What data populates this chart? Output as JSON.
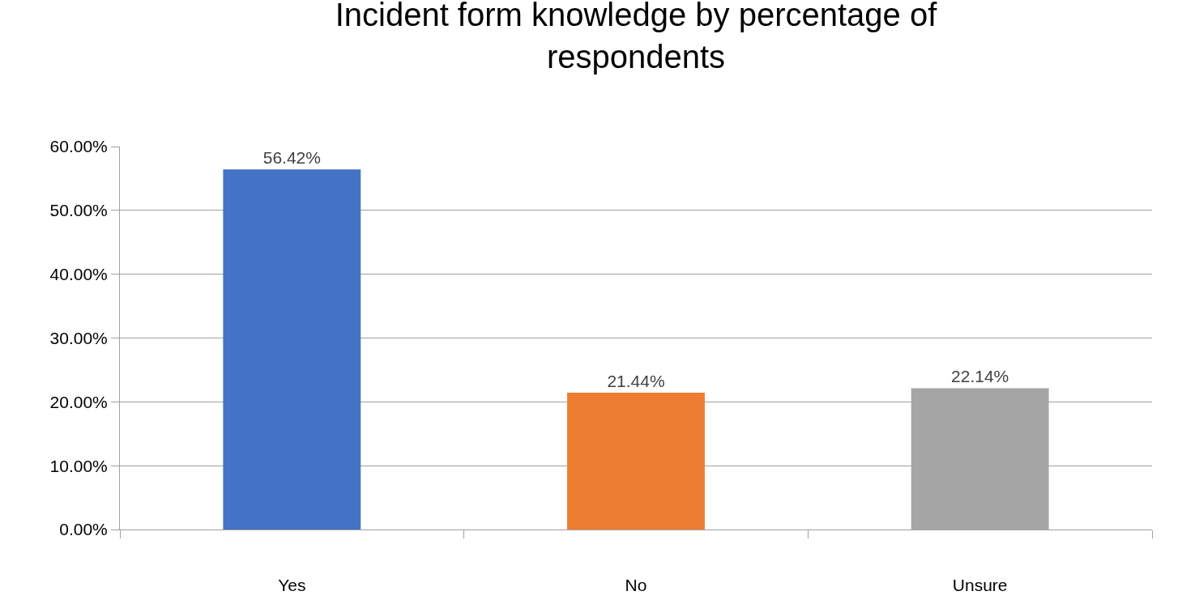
{
  "chart_data": {
    "type": "bar",
    "title": "Incident form knowledge by percentage of respondents",
    "categories": [
      "Yes",
      "No",
      "Unsure"
    ],
    "values": [
      56.42,
      21.44,
      22.14
    ],
    "colors": [
      "#4472c4",
      "#ed7d31",
      "#a5a5a5"
    ],
    "value_labels": [
      "56.42%",
      "21.44%",
      "22.14%"
    ],
    "ylim": [
      0,
      60
    ],
    "yticks": [
      {
        "value": 0,
        "label": "0.00%"
      },
      {
        "value": 10,
        "label": "10.00%"
      },
      {
        "value": 20,
        "label": "20.00%"
      },
      {
        "value": 30,
        "label": "30.00%"
      },
      {
        "value": 40,
        "label": "40.00%"
      },
      {
        "value": 50,
        "label": "50.00%"
      },
      {
        "value": 60,
        "label": "60.00%"
      }
    ],
    "grid": "y",
    "legend": false
  }
}
